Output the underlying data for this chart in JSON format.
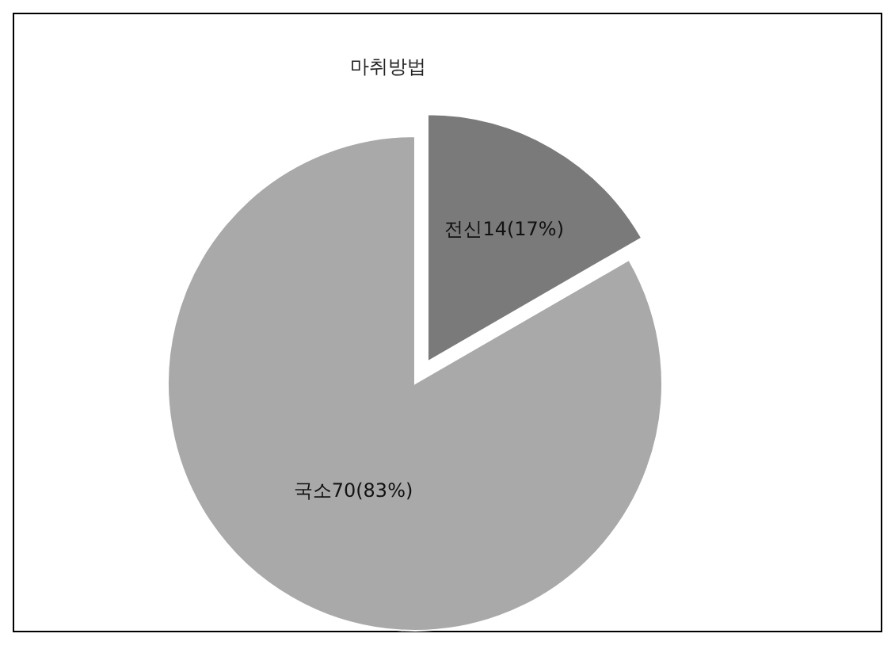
{
  "chart_data": {
    "type": "pie",
    "title": "마취방법",
    "categories": [
      "전신",
      "국소"
    ],
    "values": [
      14,
      70
    ],
    "value_labels": [
      "14(17%)",
      "70(83%)"
    ],
    "colors": [
      "#7a7a7a",
      "#a9a9a9"
    ],
    "legend": false
  }
}
